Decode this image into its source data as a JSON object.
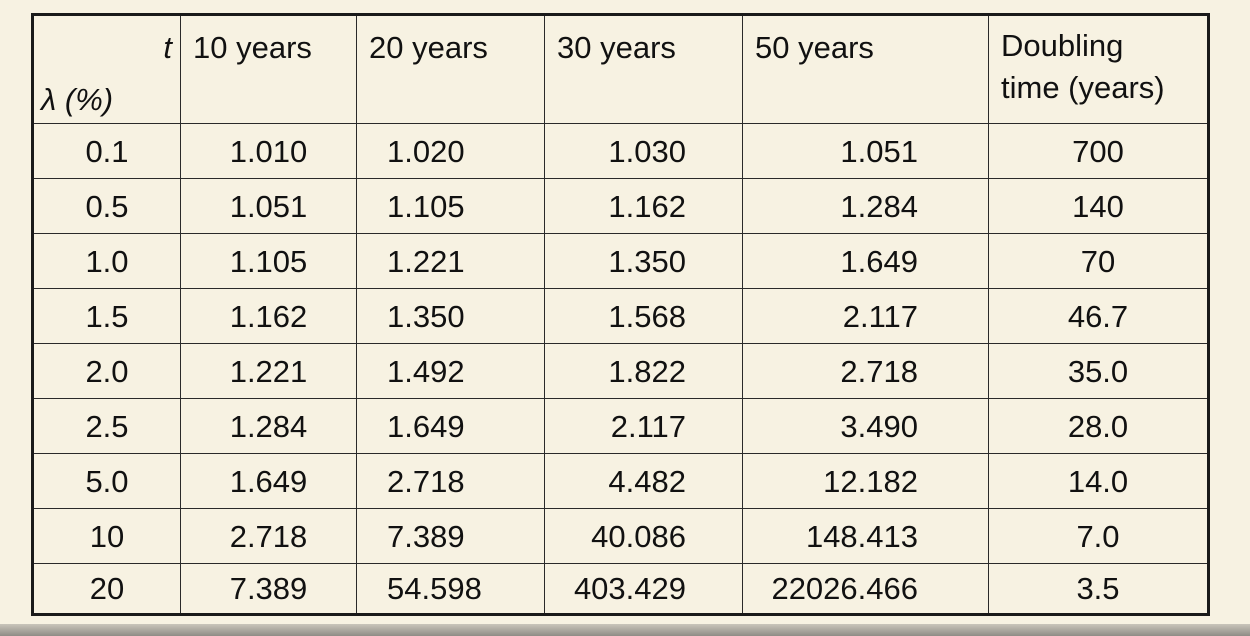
{
  "table": {
    "corner_t": "t",
    "corner_lambda": "λ (%)",
    "headers": [
      "10 years",
      "20 years",
      "30 years",
      "50 years",
      "Doubling",
      "time (years)"
    ],
    "rows": [
      [
        "0.1",
        "1.010",
        "1.020",
        "1.030",
        "1.051",
        "700"
      ],
      [
        "0.5",
        "1.051",
        "1.105",
        "1.162",
        "1.284",
        "140"
      ],
      [
        "1.0",
        "1.105",
        "1.221",
        "1.350",
        "1.649",
        "70"
      ],
      [
        "1.5",
        "1.162",
        "1.350",
        "1.568",
        "2.117",
        "46.7"
      ],
      [
        "2.0",
        "1.221",
        "1.492",
        "1.822",
        "2.718",
        "35.0"
      ],
      [
        "2.5",
        "1.284",
        "1.649",
        "2.117",
        "3.490",
        "28.0"
      ],
      [
        "5.0",
        "1.649",
        "2.718",
        "4.482",
        "12.182",
        "14.0"
      ],
      [
        "10",
        "2.718",
        "7.389",
        "40.086",
        "148.413",
        "7.0"
      ],
      [
        "20",
        "7.389",
        "54.598",
        "403.429",
        "22026.466",
        "3.5"
      ]
    ]
  }
}
